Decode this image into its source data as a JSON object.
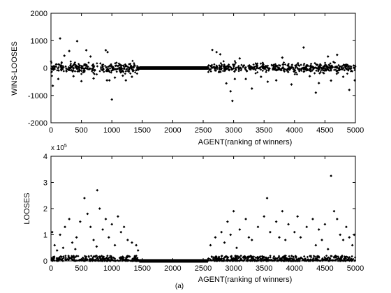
{
  "chart_data": [
    {
      "type": "scatter",
      "xlabel": "AGENT(ranking of winners)",
      "ylabel": "WINS-LOOSES",
      "xlim": [
        0,
        5000
      ],
      "ylim": [
        -2000,
        2000
      ],
      "xticks": [
        "0",
        "500",
        "1000",
        "1500",
        "2000",
        "2500",
        "3000",
        "3500",
        "4000",
        "4500",
        "5000"
      ],
      "yticks": [
        "-2000",
        "-1000",
        "0",
        "1000",
        "2000"
      ],
      "grid": false,
      "series": [
        {
          "marker": "diamond",
          "color": "#000000",
          "dense_regions": [
            {
              "x": [
                0,
                1450
              ],
              "y_spread": 180
            },
            {
              "x": [
                1450,
                2580
              ],
              "y_spread": 0
            },
            {
              "x": [
                2580,
                5000
              ],
              "y_spread": 160
            }
          ],
          "outliers": [
            [
              150,
              1080
            ],
            [
              430,
              980
            ],
            [
              580,
              650
            ],
            [
              650,
              420
            ],
            [
              900,
              650
            ],
            [
              930,
              580
            ],
            [
              300,
              620
            ],
            [
              220,
              450
            ],
            [
              30,
              -650
            ],
            [
              120,
              -400
            ],
            [
              370,
              -300
            ],
            [
              500,
              -480
            ],
            [
              920,
              -450
            ],
            [
              960,
              -450
            ],
            [
              1000,
              -1150
            ],
            [
              1050,
              -350
            ],
            [
              1180,
              -280
            ],
            [
              1230,
              -450
            ],
            [
              700,
              -380
            ],
            [
              1330,
              -320
            ],
            [
              2650,
              660
            ],
            [
              2720,
              580
            ],
            [
              2780,
              500
            ],
            [
              2880,
              -560
            ],
            [
              2950,
              -850
            ],
            [
              2980,
              -1200
            ],
            [
              3020,
              -400
            ],
            [
              3200,
              -400
            ],
            [
              3300,
              -750
            ],
            [
              3450,
              -320
            ],
            [
              3560,
              -500
            ],
            [
              3700,
              -450
            ],
            [
              3950,
              -600
            ],
            [
              4150,
              750
            ],
            [
              4250,
              -300
            ],
            [
              4350,
              -900
            ],
            [
              4400,
              -550
            ],
            [
              4600,
              -460
            ],
            [
              4700,
              480
            ],
            [
              4800,
              -320
            ],
            [
              4900,
              -800
            ],
            [
              4990,
              -450
            ],
            [
              3100,
              350
            ],
            [
              3800,
              380
            ],
            [
              4550,
              420
            ]
          ]
        }
      ]
    },
    {
      "type": "scatter",
      "xlabel": "AGENT(ranking of winners)",
      "ylabel": "LOOSES",
      "xlim": [
        0,
        5000
      ],
      "ylim": [
        0,
        400000
      ],
      "y_multiplier": "x 10",
      "y_exponent": "5",
      "xticks": [
        "0",
        "500",
        "1000",
        "1500",
        "2000",
        "2500",
        "3000",
        "3500",
        "4000",
        "4500",
        "5000"
      ],
      "yticks": [
        "0",
        "1",
        "2",
        "3",
        "4"
      ],
      "grid": false,
      "caption": "(a)",
      "series": [
        {
          "marker": "diamond",
          "color": "#000000",
          "dense_regions": [
            {
              "x": [
                0,
                1450
              ],
              "y_max": 20000
            },
            {
              "x": [
                1450,
                2580
              ],
              "y_max": 0
            },
            {
              "x": [
                2580,
                5000
              ],
              "y_max": 20000
            }
          ],
          "outliers": [
            [
              20,
              110000
            ],
            [
              60,
              60000
            ],
            [
              150,
              100000
            ],
            [
              230,
              130000
            ],
            [
              300,
              160000
            ],
            [
              350,
              70000
            ],
            [
              420,
              90000
            ],
            [
              480,
              150000
            ],
            [
              550,
              240000
            ],
            [
              600,
              180000
            ],
            [
              650,
              130000
            ],
            [
              700,
              80000
            ],
            [
              760,
              270000
            ],
            [
              800,
              200000
            ],
            [
              850,
              120000
            ],
            [
              900,
              160000
            ],
            [
              950,
              90000
            ],
            [
              1000,
              140000
            ],
            [
              1050,
              60000
            ],
            [
              1100,
              170000
            ],
            [
              1150,
              110000
            ],
            [
              1200,
              130000
            ],
            [
              1260,
              80000
            ],
            [
              1330,
              70000
            ],
            [
              1400,
              60000
            ],
            [
              1430,
              40000
            ],
            [
              100,
              40000
            ],
            [
              200,
              50000
            ],
            [
              400,
              45000
            ],
            [
              750,
              55000
            ],
            [
              2620,
              60000
            ],
            [
              2700,
              90000
            ],
            [
              2800,
              110000
            ],
            [
              2850,
              70000
            ],
            [
              2900,
              150000
            ],
            [
              2950,
              100000
            ],
            [
              3000,
              190000
            ],
            [
              3100,
              120000
            ],
            [
              3200,
              160000
            ],
            [
              3250,
              90000
            ],
            [
              3300,
              80000
            ],
            [
              3400,
              130000
            ],
            [
              3500,
              170000
            ],
            [
              3550,
              240000
            ],
            [
              3600,
              110000
            ],
            [
              3700,
              150000
            ],
            [
              3750,
              90000
            ],
            [
              3800,
              190000
            ],
            [
              3850,
              80000
            ],
            [
              3900,
              140000
            ],
            [
              4000,
              110000
            ],
            [
              4050,
              170000
            ],
            [
              4100,
              90000
            ],
            [
              4200,
              130000
            ],
            [
              4300,
              160000
            ],
            [
              4350,
              60000
            ],
            [
              4400,
              120000
            ],
            [
              4450,
              80000
            ],
            [
              4500,
              140000
            ],
            [
              4600,
              325000
            ],
            [
              4650,
              190000
            ],
            [
              4700,
              160000
            ],
            [
              4750,
              100000
            ],
            [
              4800,
              80000
            ],
            [
              4850,
              130000
            ],
            [
              4900,
              90000
            ],
            [
              4950,
              60000
            ],
            [
              4980,
              100000
            ],
            [
              3050,
              50000
            ],
            [
              4550,
              45000
            ]
          ]
        }
      ]
    }
  ]
}
